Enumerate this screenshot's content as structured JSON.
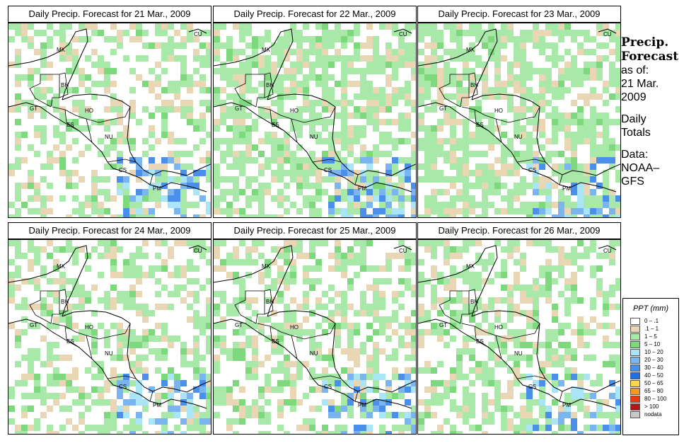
{
  "panels": [
    {
      "title": "Daily Precip. Forecast for  21 Mar., 2009",
      "seed": 11
    },
    {
      "title": "Daily Precip. Forecast for  22 Mar., 2009",
      "seed": 22
    },
    {
      "title": "Daily Precip. Forecast for  23 Mar., 2009",
      "seed": 33
    },
    {
      "title": "Daily Precip. Forecast for  24 Mar., 2009",
      "seed": 44
    },
    {
      "title": "Daily Precip. Forecast for  25 Mar., 2009",
      "seed": 55
    },
    {
      "title": "Daily Precip. Forecast for  26 Mar., 2009",
      "seed": 66
    }
  ],
  "country_labels": [
    "MX",
    "BH",
    "GT",
    "HO",
    "ES",
    "NU",
    "CS",
    "PM",
    "CU"
  ],
  "side": {
    "heading_1": "Precip.",
    "heading_2": "Forecast",
    "asof_1": "as of:",
    "asof_2": "21 Mar.",
    "asof_3": "2009",
    "daily_1": "Daily",
    "daily_2": "Totals",
    "data_1": "Data:",
    "data_2": "NOAA–",
    "data_3": "GFS"
  },
  "legend": {
    "title": "PPT (mm)",
    "entries": [
      {
        "label": "0 – .1",
        "color": "#ffffff"
      },
      {
        "label": ".1 – 1",
        "color": "#e8d6b5"
      },
      {
        "label": "1 – 5",
        "color": "#a8e8a8"
      },
      {
        "label": "5 – 10",
        "color": "#7ed87e"
      },
      {
        "label": "10 – 20",
        "color": "#a9e4f7"
      },
      {
        "label": "20 – 30",
        "color": "#7ab5ef"
      },
      {
        "label": "30 – 40",
        "color": "#4a8fea"
      },
      {
        "label": "40 – 50",
        "color": "#1e6fe6"
      },
      {
        "label": "50 – 65",
        "color": "#f9d74a"
      },
      {
        "label": "65 – 80",
        "color": "#f39a1e"
      },
      {
        "label": "80 – 100",
        "color": "#ea3a10"
      },
      {
        "label": "> 100",
        "color": "#b01818"
      },
      {
        "label": "nodata",
        "color": "#c8c8c8"
      }
    ]
  }
}
